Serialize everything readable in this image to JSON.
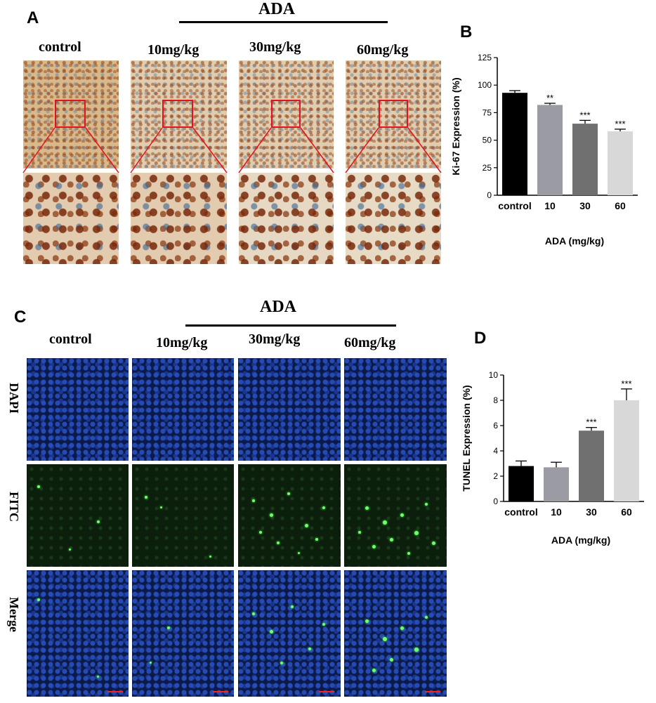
{
  "panels": {
    "A": {
      "label": "A",
      "group_title": "ADA",
      "columns": [
        "control",
        "10mg/kg",
        "30mg/kg",
        "60mg/kg"
      ]
    },
    "B": {
      "label": "B"
    },
    "C": {
      "label": "C",
      "group_title": "ADA",
      "columns": [
        "control",
        "10mg/kg",
        "30mg/kg",
        "60mg/kg"
      ],
      "rows": [
        "DAPI",
        "FITC",
        "Merge"
      ]
    },
    "D": {
      "label": "D"
    }
  },
  "chart_data": [
    {
      "type": "bar",
      "panel": "B",
      "categories": [
        "control",
        "10",
        "30",
        "60"
      ],
      "values": [
        93,
        82,
        65,
        58
      ],
      "errors": [
        2,
        1.5,
        3,
        2
      ],
      "significance": [
        "",
        "**",
        "***",
        "***"
      ],
      "colors": [
        "#000000",
        "#9b9ba3",
        "#707070",
        "#d8d8d8"
      ],
      "xlabel": "ADA (mg/kg)",
      "ylabel": "Ki-67 Expression (%)",
      "ylim": [
        0,
        125
      ],
      "yticks": [
        0,
        25,
        50,
        75,
        100,
        125
      ]
    },
    {
      "type": "bar",
      "panel": "D",
      "categories": [
        "control",
        "10",
        "30",
        "60"
      ],
      "values": [
        2.8,
        2.7,
        5.6,
        8.0
      ],
      "errors": [
        0.4,
        0.4,
        0.25,
        0.9
      ],
      "significance": [
        "",
        "",
        "***",
        "***"
      ],
      "colors": [
        "#000000",
        "#9b9ba3",
        "#707070",
        "#d8d8d8"
      ],
      "xlabel": "ADA (mg/kg)",
      "ylabel": "TUNEL Expression (%)",
      "ylim": [
        0,
        10
      ],
      "yticks": [
        0,
        2,
        4,
        6,
        8,
        10
      ]
    }
  ]
}
